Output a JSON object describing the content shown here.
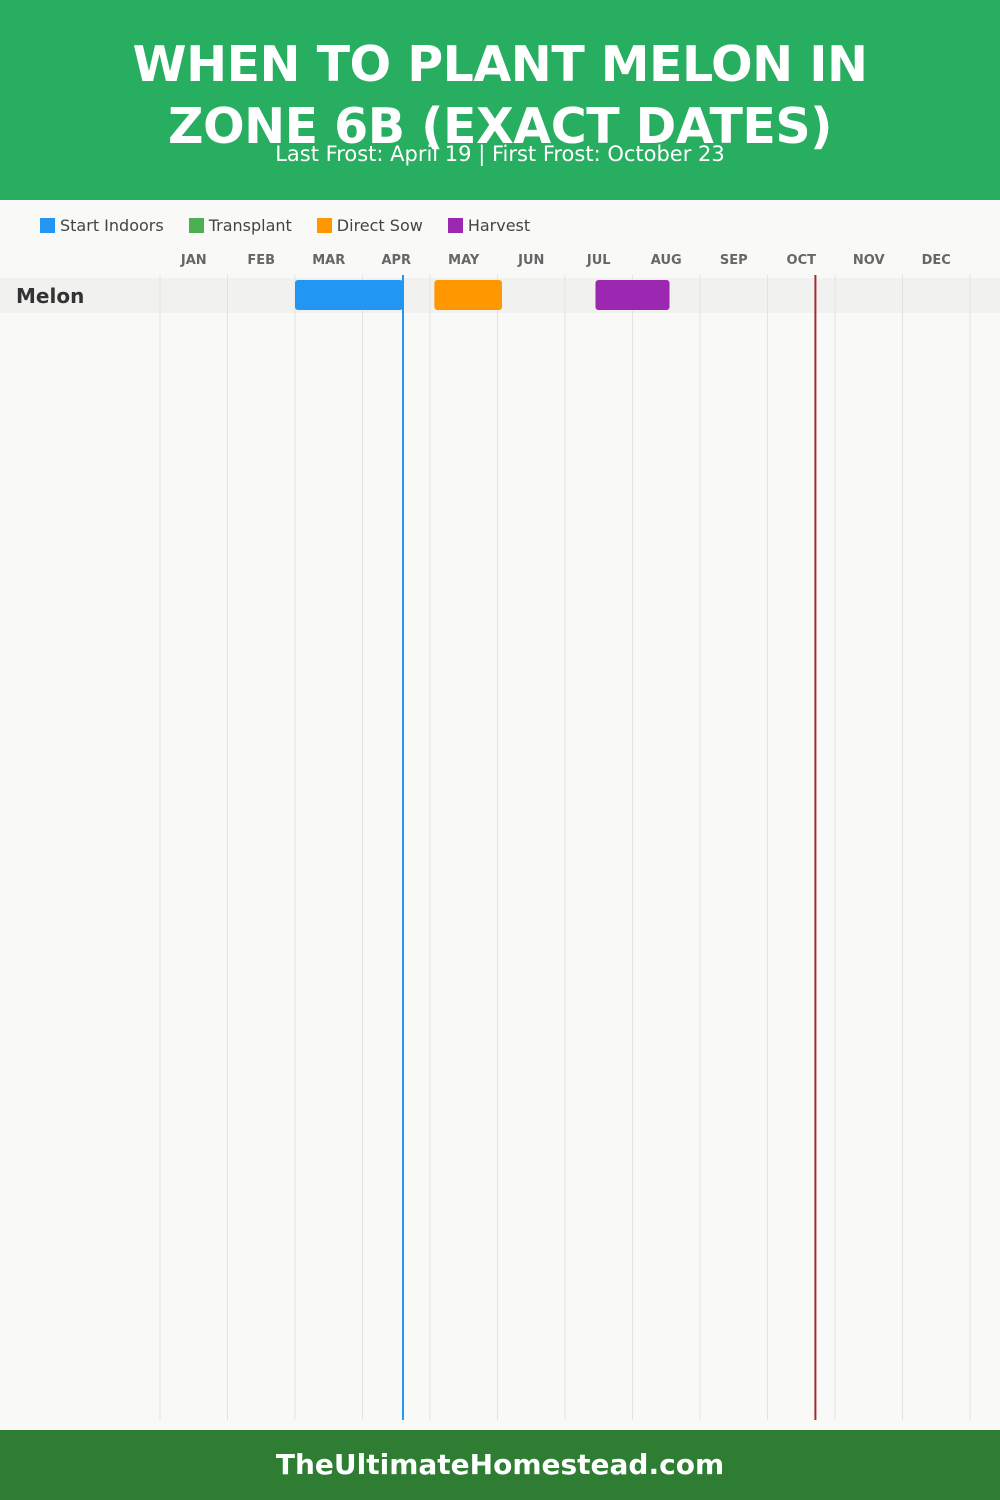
{
  "header": {
    "title": "WHEN TO PLANT MELON IN ZONE 6B (EXACT DATES)",
    "subtitle": "Last Frost: April 19 | First Frost: October 23"
  },
  "legend": [
    {
      "label": "Start Indoors",
      "color": "#2196f3"
    },
    {
      "label": "Transplant",
      "color": "#4caf50"
    },
    {
      "label": "Direct Sow",
      "color": "#ff9800"
    },
    {
      "label": "Harvest",
      "color": "#9c27b0"
    }
  ],
  "chart_data": {
    "type": "gantt",
    "months": [
      "JAN",
      "FEB",
      "MAR",
      "APR",
      "MAY",
      "JUN",
      "JUL",
      "AUG",
      "SEP",
      "OCT",
      "NOV",
      "DEC"
    ],
    "rows": [
      {
        "name": "Melon",
        "bars": [
          {
            "phase": "Start Indoors",
            "start": "Mar 1",
            "end": "Apr 19",
            "color": "#2196f3"
          },
          {
            "phase": "Direct Sow",
            "start": "May 3",
            "end": "Jun 3",
            "color": "#ff9800"
          },
          {
            "phase": "Harvest",
            "start": "Jul 15",
            "end": "Aug 18",
            "color": "#9c27b0"
          }
        ]
      }
    ],
    "markers": [
      {
        "name": "Last Frost",
        "date": "Apr 19",
        "color": "#2196f3"
      },
      {
        "name": "First Frost",
        "date": "Oct 23",
        "color": "#a52a2a"
      }
    ],
    "grid": true,
    "legend_position": "top-left"
  },
  "footer": {
    "text": "TheUltimateHomestead.com"
  }
}
